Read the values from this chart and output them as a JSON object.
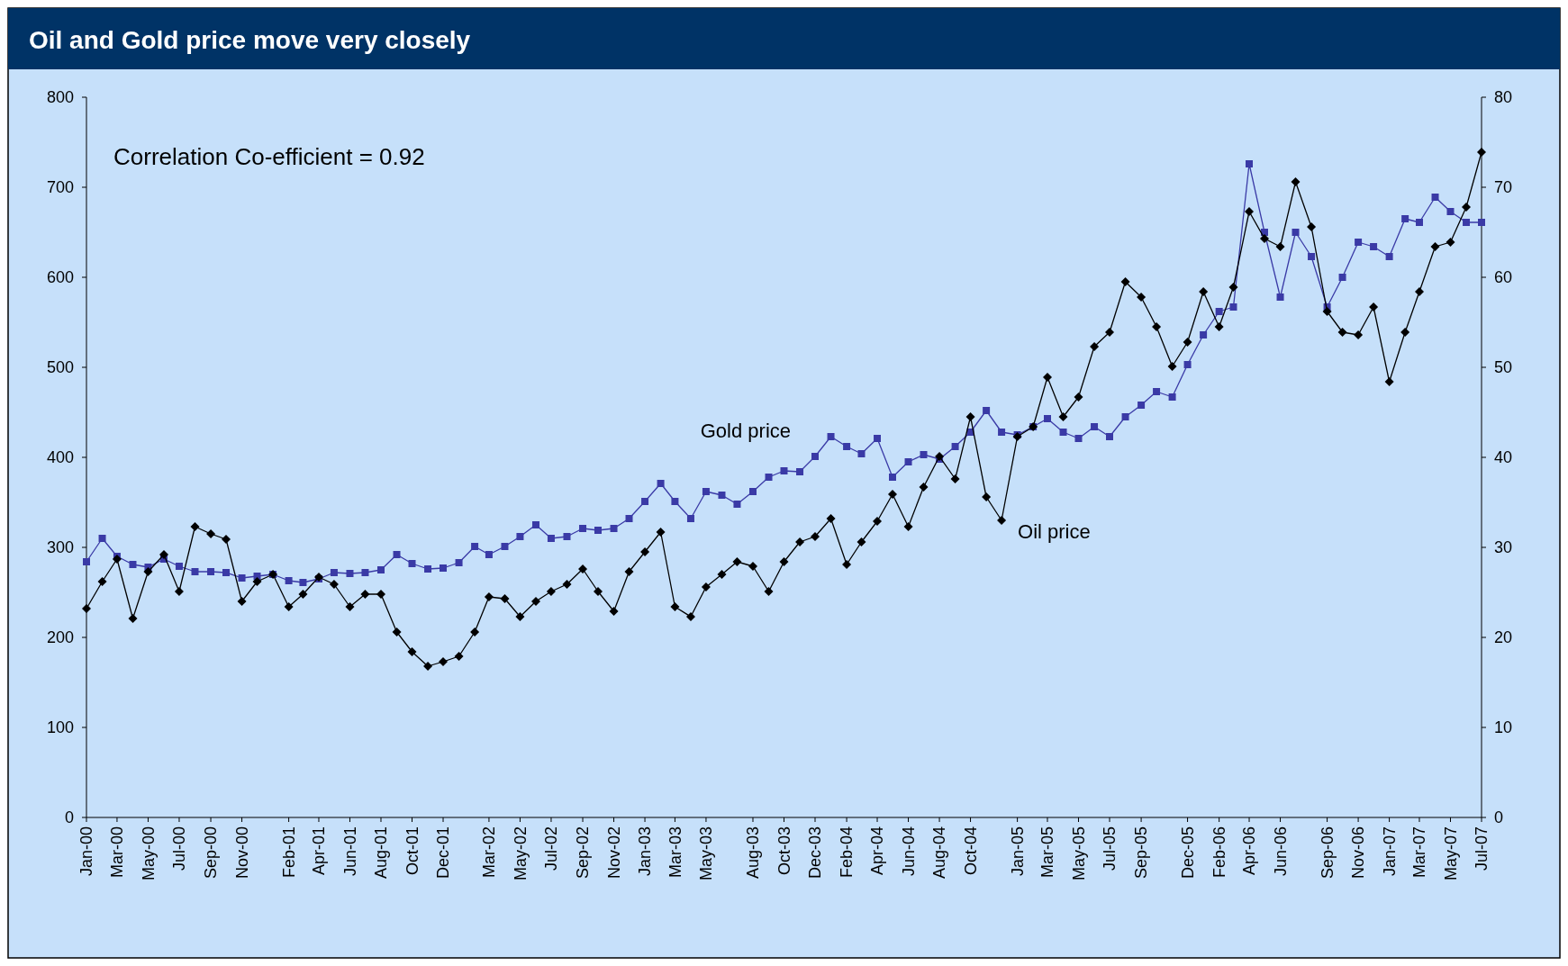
{
  "chart_data": {
    "type": "line",
    "title": "Oil and Gold price move very closely",
    "annotations": [
      "Correlation Co-efficient = 0.92"
    ],
    "x": [
      "2000-01",
      "2000-02",
      "2000-03",
      "2000-04",
      "2000-05",
      "2000-06",
      "2000-07",
      "2000-08",
      "2000-09",
      "2000-10",
      "2000-11",
      "2000-12",
      "2001-01",
      "2001-02",
      "2001-03",
      "2001-04",
      "2001-05",
      "2001-06",
      "2001-07",
      "2001-08",
      "2001-09",
      "2001-10",
      "2001-11",
      "2001-12",
      "2002-01",
      "2002-02",
      "2002-03",
      "2002-04",
      "2002-05",
      "2002-06",
      "2002-07",
      "2002-08",
      "2002-09",
      "2002-10",
      "2002-11",
      "2002-12",
      "2003-01",
      "2003-02",
      "2003-03",
      "2003-04",
      "2003-05",
      "2003-06",
      "2003-07",
      "2003-08",
      "2003-09",
      "2003-10",
      "2003-11",
      "2003-12",
      "2004-01",
      "2004-02",
      "2004-03",
      "2004-04",
      "2004-05",
      "2004-06",
      "2004-07",
      "2004-08",
      "2004-09",
      "2004-10",
      "2004-11",
      "2004-12",
      "2005-01",
      "2005-02",
      "2005-03",
      "2005-04",
      "2005-05",
      "2005-06",
      "2005-07",
      "2005-08",
      "2005-09",
      "2005-10",
      "2005-11",
      "2005-12",
      "2006-01",
      "2006-02",
      "2006-03",
      "2006-04",
      "2006-05",
      "2006-06",
      "2006-07",
      "2006-08",
      "2006-09",
      "2006-10",
      "2006-11",
      "2006-12",
      "2007-01",
      "2007-02",
      "2007-03",
      "2007-04",
      "2007-05",
      "2007-06",
      "2007-07"
    ],
    "series": [
      {
        "name": "Gold price",
        "color": "#3a3aa6",
        "marker": "square",
        "values": [
          284,
          310,
          290,
          281,
          278,
          287,
          279,
          273,
          273,
          272,
          266,
          268,
          270,
          263,
          261,
          265,
          272,
          271,
          272,
          275,
          292,
          282,
          276,
          277,
          283,
          301,
          292,
          301,
          312,
          325,
          310,
          312,
          321,
          319,
          321,
          332,
          351,
          371,
          351,
          332,
          362,
          358,
          348,
          362,
          378,
          385,
          384,
          401,
          423,
          412,
          404,
          421,
          378,
          395,
          403,
          398,
          412,
          428,
          452,
          428,
          425,
          434,
          443,
          428,
          421,
          434,
          423,
          445,
          458,
          473,
          467,
          503,
          536,
          562,
          567,
          726,
          650,
          578,
          650,
          623,
          567,
          600,
          639,
          634,
          623,
          665,
          661,
          689,
          673,
          661,
          661
        ]
      },
      {
        "name": "Oil price",
        "color": "#000000",
        "marker": "diamond",
        "axis": "y2",
        "values": [
          23.2,
          26.2,
          28.7,
          22.1,
          27.3,
          29.2,
          25.1,
          32.3,
          31.5,
          30.9,
          24.0,
          26.2,
          27.0,
          23.4,
          24.8,
          26.7,
          25.9,
          23.4,
          24.8,
          24.8,
          20.6,
          18.4,
          16.8,
          17.3,
          17.9,
          20.6,
          24.5,
          24.3,
          22.3,
          24.0,
          25.1,
          25.9,
          27.6,
          25.1,
          22.9,
          27.3,
          29.5,
          31.7,
          23.4,
          22.3,
          25.6,
          27.0,
          28.4,
          27.9,
          25.1,
          28.4,
          30.6,
          31.2,
          33.2,
          28.1,
          30.6,
          32.9,
          35.9,
          32.3,
          36.7,
          40.1,
          37.6,
          44.5,
          35.6,
          33.0,
          42.3,
          43.4,
          48.9,
          44.5,
          46.7,
          52.3,
          53.9,
          59.5,
          57.8,
          54.5,
          50.1,
          52.8,
          58.4,
          54.5,
          58.9,
          67.3,
          64.3,
          63.4,
          70.6,
          65.6,
          56.2,
          53.9,
          53.6,
          56.7,
          48.4,
          53.9,
          58.4,
          63.4,
          63.9,
          67.8,
          73.9
        ]
      }
    ],
    "xlim": [
      "2000-01",
      "2007-07"
    ],
    "xticks": [
      {
        "value": "2000-01",
        "label": "Jan-00"
      },
      {
        "value": "2000-03",
        "label": "Mar-00"
      },
      {
        "value": "2000-05",
        "label": "May-00"
      },
      {
        "value": "2000-07",
        "label": "Jul-00"
      },
      {
        "value": "2000-09",
        "label": "Sep-00"
      },
      {
        "value": "2000-11",
        "label": "Nov-00"
      },
      {
        "value": "2001-02",
        "label": "Feb-01"
      },
      {
        "value": "2001-04",
        "label": "Apr-01"
      },
      {
        "value": "2001-06",
        "label": "Jun-01"
      },
      {
        "value": "2001-08",
        "label": "Aug-01"
      },
      {
        "value": "2001-10",
        "label": "Oct-01"
      },
      {
        "value": "2001-12",
        "label": "Dec-01"
      },
      {
        "value": "2002-03",
        "label": "Mar-02"
      },
      {
        "value": "2002-05",
        "label": "May-02"
      },
      {
        "value": "2002-07",
        "label": "Jul-02"
      },
      {
        "value": "2002-09",
        "label": "Sep-02"
      },
      {
        "value": "2002-11",
        "label": "Nov-02"
      },
      {
        "value": "2003-01",
        "label": "Jan-03"
      },
      {
        "value": "2003-03",
        "label": "Mar-03"
      },
      {
        "value": "2003-05",
        "label": "May-03"
      },
      {
        "value": "2003-08",
        "label": "Aug-03"
      },
      {
        "value": "2003-10",
        "label": "Oct-03"
      },
      {
        "value": "2003-12",
        "label": "Dec-03"
      },
      {
        "value": "2004-02",
        "label": "Feb-04"
      },
      {
        "value": "2004-04",
        "label": "Apr-04"
      },
      {
        "value": "2004-06",
        "label": "Jun-04"
      },
      {
        "value": "2004-08",
        "label": "Aug-04"
      },
      {
        "value": "2004-10",
        "label": "Oct-04"
      },
      {
        "value": "2005-01",
        "label": "Jan-05"
      },
      {
        "value": "2005-03",
        "label": "Mar-05"
      },
      {
        "value": "2005-05",
        "label": "May-05"
      },
      {
        "value": "2005-07",
        "label": "Jul-05"
      },
      {
        "value": "2005-09",
        "label": "Sep-05"
      },
      {
        "value": "2005-12",
        "label": "Dec-05"
      },
      {
        "value": "2006-02",
        "label": "Feb-06"
      },
      {
        "value": "2006-04",
        "label": "Apr-06"
      },
      {
        "value": "2006-06",
        "label": "Jun-06"
      },
      {
        "value": "2006-09",
        "label": "Sep-06"
      },
      {
        "value": "2006-11",
        "label": "Nov-06"
      },
      {
        "value": "2007-01",
        "label": "Jan-07"
      },
      {
        "value": "2007-03",
        "label": "Mar-07"
      },
      {
        "value": "2007-05",
        "label": "May-07"
      },
      {
        "value": "2007-07",
        "label": "Jul-07"
      }
    ],
    "ylim": [
      0,
      800
    ],
    "yticks": [
      0,
      100,
      200,
      300,
      400,
      500,
      600,
      700,
      800
    ],
    "y2lim": [
      0,
      80
    ],
    "y2ticks": [
      0,
      10,
      20,
      30,
      40,
      50,
      60,
      70,
      80
    ],
    "grid": false
  }
}
